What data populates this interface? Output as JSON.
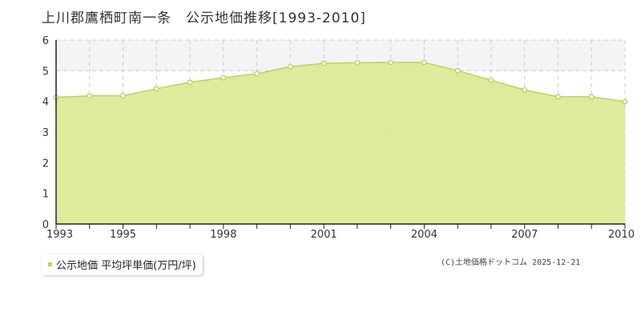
{
  "title": "上川郡鷹栖町南一条　公示地価推移[1993-2010]",
  "legend": {
    "label": "公示地価 平均坪単価(万円/坪)"
  },
  "credit": "(C)土地価格ドットコム 2025-12-21",
  "colors": {
    "area_fill": "#dcea97",
    "line": "#b9d654",
    "marker_fill": "#ffffff",
    "marker_stroke": "#b0d04a",
    "grid": "#cccccc",
    "band": "#f4f4f4",
    "axis": "#222222",
    "legend_swatch": "#b9d654"
  },
  "chart_data": {
    "type": "area",
    "title": "上川郡鷹栖町南一条　公示地価推移[1993-2010]",
    "xlabel": "",
    "ylabel": "",
    "x": [
      1993,
      1994,
      1995,
      1996,
      1997,
      1998,
      1999,
      2000,
      2001,
      2002,
      2003,
      2004,
      2005,
      2006,
      2007,
      2008,
      2009,
      2010
    ],
    "series": [
      {
        "name": "公示地価 平均坪単価(万円/坪)",
        "values": [
          4.13,
          4.18,
          4.18,
          4.41,
          4.62,
          4.77,
          4.9,
          5.13,
          5.24,
          5.26,
          5.27,
          5.27,
          5.0,
          4.69,
          4.37,
          4.15,
          4.15,
          3.99
        ]
      }
    ],
    "xlim": [
      1993,
      2010
    ],
    "ylim": [
      0,
      6
    ],
    "y_ticks": [
      "0",
      "1",
      "2",
      "3",
      "4",
      "5",
      "6"
    ],
    "x_tick_labels": [
      "1993",
      "1995",
      "1998",
      "2001",
      "2004",
      "2007",
      "2010"
    ],
    "grid": true,
    "legend_position": "bottom-left"
  }
}
